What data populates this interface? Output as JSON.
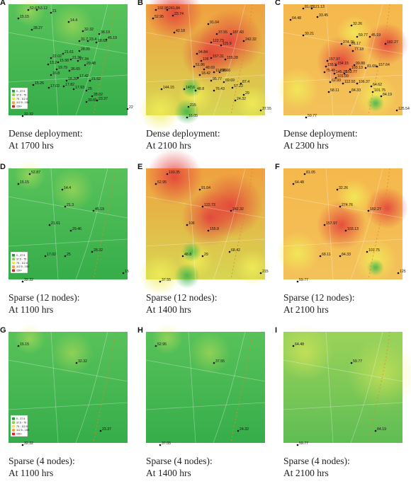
{
  "legend": {
    "entries": [
      {
        "label": "0 - 37.5",
        "color": "#1aa33a"
      },
      {
        "label": "37.5 - 75",
        "color": "#8fd13f"
      },
      {
        "label": "75 - 112.5",
        "color": "#e8e84a"
      },
      {
        "label": "112.5 - 150",
        "color": "#f3a23a"
      },
      {
        "label": "150+",
        "color": "#e52020"
      }
    ]
  },
  "panels": [
    {
      "letter": "A",
      "caption_line1": "Dense deployment:",
      "caption_line2": "At 1700 hrs",
      "tint": "green",
      "show_legend": true,
      "nodes": [
        "52.67",
        "53.12",
        "21",
        "15.15",
        "14.4",
        "28.27",
        "32.32",
        "38.19",
        "31.7",
        "23.4",
        "18.63",
        "45.19",
        "28.05",
        "21.61",
        "22.02",
        "21.36",
        "15.98",
        "13.2",
        "27.34",
        "29.48",
        "19.79",
        "36.65",
        "16.8",
        "17.42",
        "18.26",
        "21.52",
        "15.26",
        "17.02",
        "17.82",
        "17.93",
        "25",
        "28.02",
        "23.37",
        "30.65",
        "32.32",
        "22"
      ]
    },
    {
      "letter": "B",
      "caption_line1": "Dense deployment:",
      "caption_line2": "At 2100 hrs",
      "tint": "hot",
      "show_legend": false,
      "nodes": [
        "192.95",
        "241.84",
        "52.95",
        "23.74",
        "42.18",
        "91.04",
        "37.55",
        "187.43",
        "242.32",
        "122.73",
        "115.9",
        "94.84",
        "106",
        "157.31",
        "155.28",
        "51.86",
        "48.69",
        "114.96",
        "58.66",
        "87.4",
        "57.22",
        "18.42",
        "95.77",
        "69.69",
        "144.15",
        "147.6",
        "48.8",
        "76.43",
        "29",
        "24.32",
        "16.05",
        "37.55",
        "215"
      ]
    },
    {
      "letter": "C",
      "caption_line1": "Dense deployment:",
      "caption_line2": "At 2300 hrs",
      "tint": "warm",
      "show_legend": false,
      "nodes": [
        "81.05",
        "121.13",
        "64.48",
        "33.45",
        "32.26",
        "30.21",
        "59.77",
        "45.19",
        "274.76",
        "81.17",
        "182.27",
        "77.18",
        "157.97",
        "155.9",
        "154.15",
        "99.88",
        "81.69",
        "157.64",
        "75.48",
        "103.13",
        "145.28",
        "153.77",
        "101.09",
        "62.93",
        "112.92",
        "106.37",
        "64.62",
        "101.75",
        "58.11",
        "84.33",
        "84.19",
        "125.54",
        "59.77"
      ]
    },
    {
      "letter": "D",
      "caption_line1": "Sparse (12 nodes):",
      "caption_line2": "At 1100 hrs",
      "tint": "green",
      "show_legend": true,
      "nodes": [
        "52.87",
        "15.15",
        "14.4",
        "21.3",
        "45.19",
        "21.61",
        "29.46",
        "17.02",
        "25",
        "28.32",
        "32.32",
        "15"
      ]
    },
    {
      "letter": "E",
      "caption_line1": "Sparse (12 nodes):",
      "caption_line2": "At 1400 hrs",
      "tint": "hot",
      "show_legend": false,
      "nodes": [
        "193.35",
        "52.95",
        "91.04",
        "122.73",
        "242.32",
        "106",
        "155.8",
        "48.8",
        "29",
        "68.42",
        "37.55",
        "215"
      ]
    },
    {
      "letter": "F",
      "caption_line1": "Sparse (12 nodes):",
      "caption_line2": "At 2100 hrs",
      "tint": "warm",
      "show_legend": false,
      "nodes": [
        "81.05",
        "64.48",
        "32.26",
        "274.76",
        "182.27",
        "157.97",
        "103.13",
        "68.11",
        "84.33",
        "101.75",
        "59.77",
        "125"
      ]
    },
    {
      "letter": "G",
      "caption_line1": "Sparse (4 nodes):",
      "caption_line2": "At 1100 hrs",
      "tint": "green",
      "show_legend": true,
      "nodes": [
        "15.15",
        "32.32",
        "23.37",
        "32.32"
      ]
    },
    {
      "letter": "H",
      "caption_line1": "Sparse (4 nodes):",
      "caption_line2": "At 1400 hrs",
      "tint": "green",
      "show_legend": false,
      "nodes": [
        "52.95",
        "37.55",
        "24.32",
        "37.55"
      ]
    },
    {
      "letter": "I",
      "caption_line1": "Sparse (4 nodes):",
      "caption_line2": "At 2100 hrs",
      "tint": "lightgreen",
      "show_legend": false,
      "nodes": [
        "64.48",
        "59.77",
        "84.19",
        "59.77"
      ]
    }
  ]
}
